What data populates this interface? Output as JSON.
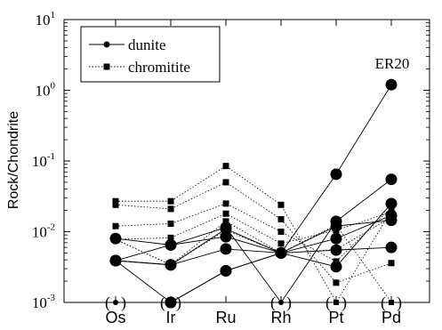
{
  "chart_data": {
    "type": "scatter",
    "ylabel": "Rock/Chondrite",
    "xlabel": "",
    "y_scale": "log",
    "ylim": [
      0.001,
      10
    ],
    "y_ticks": [
      {
        "value": 10,
        "base": "10",
        "exp": "1"
      },
      {
        "value": 1,
        "base": "10",
        "exp": "0"
      },
      {
        "value": 0.1,
        "base": "10",
        "exp": "-1"
      },
      {
        "value": 0.01,
        "base": "10",
        "exp": "-2"
      },
      {
        "value": 0.001,
        "base": "10",
        "exp": "-3"
      }
    ],
    "categories": [
      "Os",
      "Ir",
      "Ru",
      "Rh",
      "Pt",
      "Pd"
    ],
    "grid": false,
    "legend": {
      "position": "top-left",
      "entries": [
        {
          "label": "dunite",
          "marker": "circle",
          "line": "solid"
        },
        {
          "label": "chromitite",
          "marker": "square",
          "line": "dotted"
        }
      ]
    },
    "annotation": {
      "text": "ER20",
      "category": "Pd",
      "value": 1.2
    },
    "series": [
      {
        "group": "dunite",
        "marker_size": "large",
        "values": [
          0.001,
          0.001,
          0.0028,
          0.005,
          0.065,
          1.2
        ]
      },
      {
        "group": "dunite",
        "marker_size": "large",
        "values": [
          0.0039,
          0.001,
          0.0028,
          0.005,
          0.008,
          0.017
        ]
      },
      {
        "group": "dunite",
        "marker_size": "large",
        "values": [
          0.0039,
          0.0065,
          0.0085,
          0.005,
          0.0055,
          0.006
        ]
      },
      {
        "group": "dunite",
        "marker_size": "large",
        "values": [
          0.0039,
          0.0034,
          0.0057,
          0.005,
          0.012,
          0.0145
        ]
      },
      {
        "group": "dunite",
        "marker_size": "large",
        "values": [
          0.0039,
          0.0034,
          0.011,
          0.005,
          0.0032,
          0.025
        ]
      },
      {
        "group": "dunite",
        "marker_size": "large",
        "values": [
          0.008,
          0.0065,
          0.0115,
          0.001,
          0.014,
          0.055
        ]
      },
      {
        "group": "chromitite",
        "values": [
          0.027,
          0.027,
          0.085,
          0.024,
          0.001,
          0.02
        ]
      },
      {
        "group": "chromitite",
        "values": [
          0.024,
          0.021,
          0.05,
          0.015,
          0.0019,
          0.0036
        ]
      },
      {
        "group": "chromitite",
        "values": [
          0.012,
          0.013,
          0.025,
          0.01,
          0.0038,
          0.022
        ]
      },
      {
        "group": "chromitite",
        "values": [
          0.0078,
          0.0082,
          0.018,
          0.0068,
          0.0105,
          0.019
        ]
      },
      {
        "group": "chromitite",
        "values": [
          0.0078,
          0.0034,
          0.014,
          0.005,
          0.0125,
          0.001
        ]
      },
      {
        "group": "chromitite",
        "values": [
          0.0078,
          0.0034,
          0.0105,
          0.005,
          0.0056,
          0.016
        ]
      }
    ]
  }
}
